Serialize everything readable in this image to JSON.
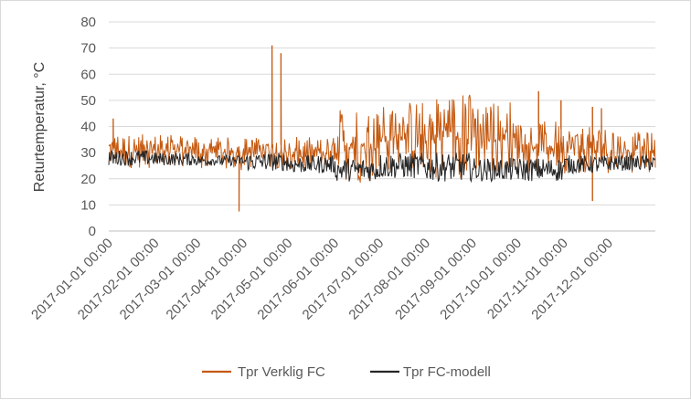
{
  "chart_data": {
    "type": "line",
    "title": "",
    "xlabel": "",
    "ylabel": "Returtemperatur, °C",
    "ylim": [
      0,
      80
    ],
    "yticks": [
      "0",
      "10",
      "20",
      "30",
      "40",
      "50",
      "60",
      "70",
      "80"
    ],
    "x_range": [
      "2017-01-01",
      "2017-12-31"
    ],
    "x_tick_labels": [
      "2017-01-01 00:00",
      "2017-02-01 00:00",
      "2017-03-01 00:00",
      "2017-04-01 00:00",
      "2017-05-01 00:00",
      "2017-06-01 00:00",
      "2017-07-01 00:00",
      "2017-08-01 00:00",
      "2017-09-01 00:00",
      "2017-10-01 00:00",
      "2017-11-01 00:00",
      "2017-12-01 00:00"
    ],
    "x_tick_days": [
      0,
      31,
      59,
      90,
      120,
      151,
      181,
      212,
      243,
      273,
      304,
      334
    ],
    "grid": true,
    "legend_position": "bottom",
    "series": [
      {
        "name": "Tpr Verklig FC",
        "color": "#c55a11",
        "monthly_band": [
          [
            24,
            37
          ],
          [
            24,
            37
          ],
          [
            23,
            36
          ],
          [
            24,
            36
          ],
          [
            22,
            36
          ],
          [
            18,
            47
          ],
          [
            22,
            50
          ],
          [
            20,
            53
          ],
          [
            22,
            50
          ],
          [
            22,
            42
          ],
          [
            22,
            40
          ],
          [
            22,
            38
          ]
        ],
        "spikes": [
          {
            "day": 3,
            "value": 43
          },
          {
            "day": 87,
            "value": 7.5
          },
          {
            "day": 109,
            "value": 71
          },
          {
            "day": 115,
            "value": 68
          },
          {
            "day": 287,
            "value": 53.5
          },
          {
            "day": 302,
            "value": 50
          },
          {
            "day": 323,
            "value": 11.5
          },
          {
            "day": 323,
            "value": 47.5
          },
          {
            "day": 329,
            "value": 47
          }
        ]
      },
      {
        "name": "Tpr FC-modell",
        "color": "#262626",
        "area_color": "#404040",
        "monthly_band": [
          [
            25,
            31
          ],
          [
            25,
            30
          ],
          [
            25,
            29
          ],
          [
            23,
            30
          ],
          [
            22,
            29
          ],
          [
            19,
            28
          ],
          [
            20,
            30
          ],
          [
            19,
            30
          ],
          [
            19,
            28
          ],
          [
            19,
            28
          ],
          [
            22,
            29
          ],
          [
            23,
            29
          ]
        ],
        "spikes": []
      }
    ]
  }
}
